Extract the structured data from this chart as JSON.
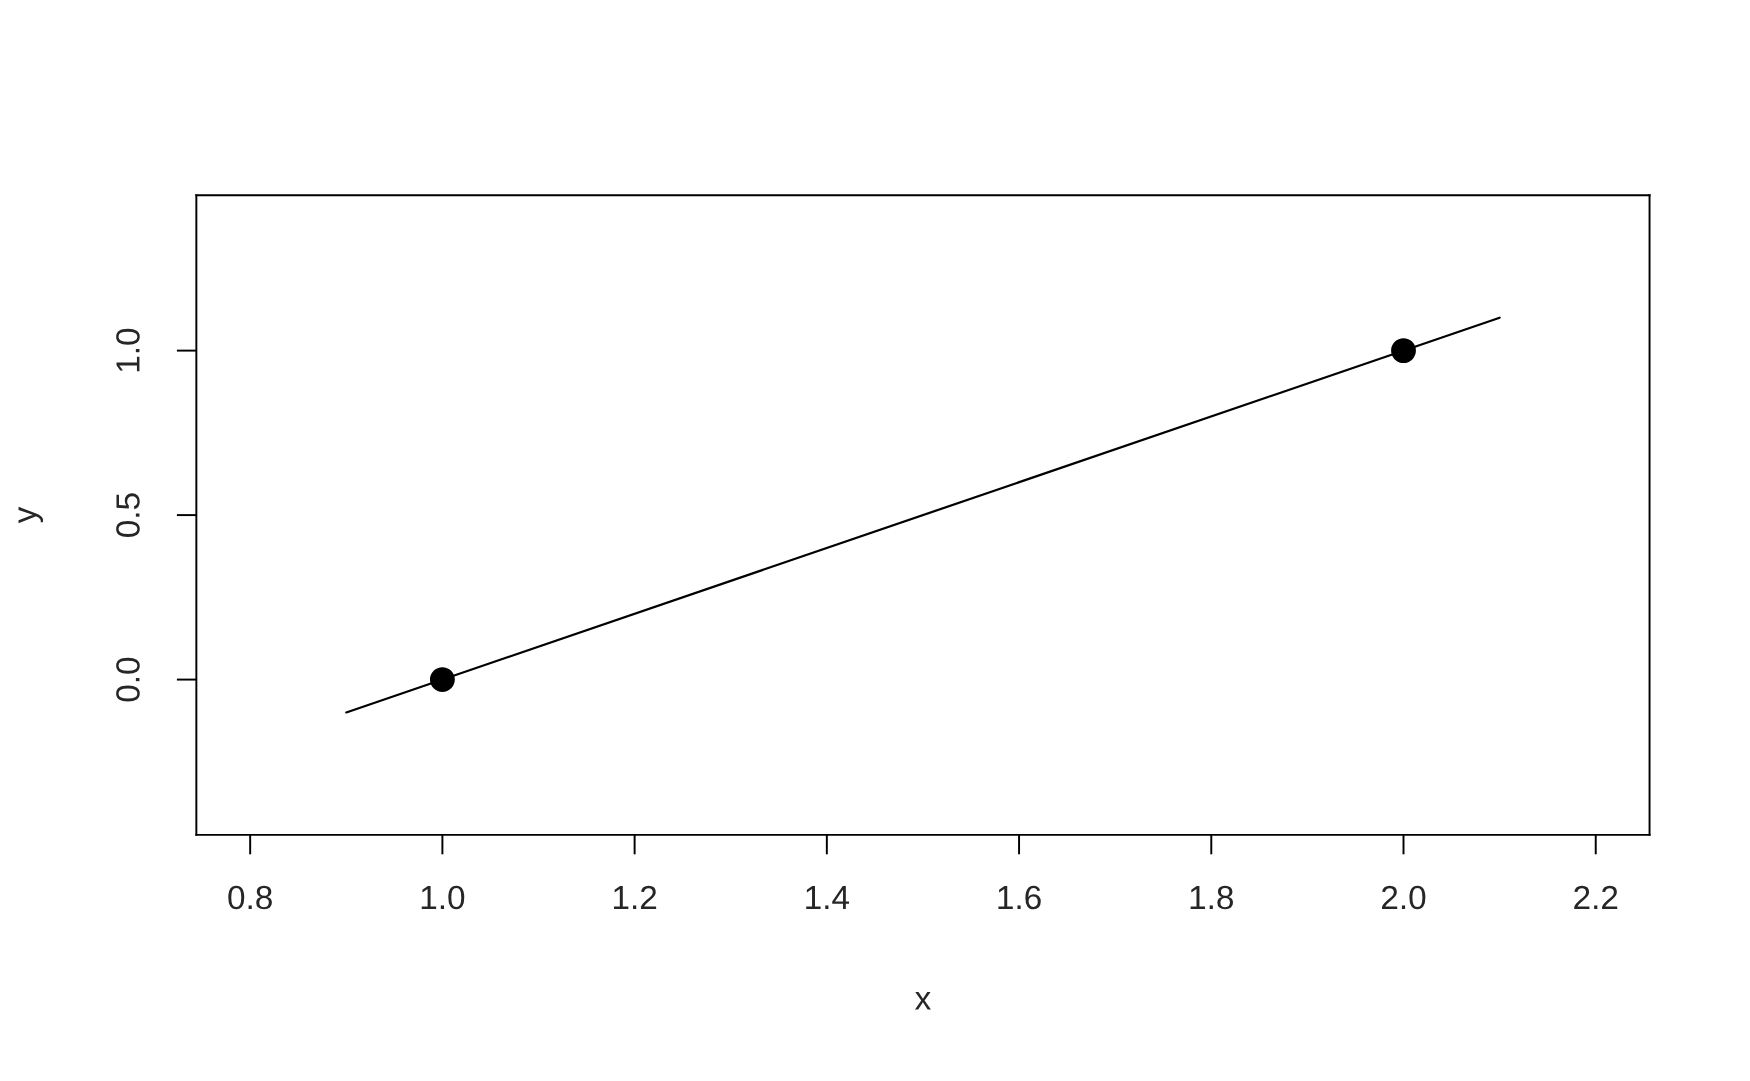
{
  "chart_data": {
    "type": "scatter",
    "xlabel": "x",
    "ylabel": "y",
    "series": [
      {
        "color": "#000000",
        "x": [
          1,
          2
        ],
        "values": [
          0,
          1
        ],
        "marker": "circle"
      },
      {
        "type": "line",
        "color": "#000000",
        "x": [
          0.9,
          2.1
        ],
        "values": [
          -0.1,
          1.1
        ],
        "line_style": "solid"
      }
    ],
    "xlim": [
      0.744,
      2.256
    ],
    "ylim": [
      -0.472,
      1.472
    ],
    "xticks": [
      {
        "value": 0.8,
        "label": "0.8"
      },
      {
        "value": 1.0,
        "label": "1.0"
      },
      {
        "value": 1.2,
        "label": "1.2"
      },
      {
        "value": 1.4,
        "label": "1.4"
      },
      {
        "value": 1.6,
        "label": "1.6"
      },
      {
        "value": 1.8,
        "label": "1.8"
      },
      {
        "value": 2.0,
        "label": "2.0"
      },
      {
        "value": 2.2,
        "label": "2.2"
      }
    ],
    "yticks": [
      {
        "value": 0.0,
        "label": "0.0"
      },
      {
        "value": 0.5,
        "label": "0.5"
      },
      {
        "value": 1.0,
        "label": "1.0"
      }
    ],
    "grid": false,
    "legend": false
  }
}
